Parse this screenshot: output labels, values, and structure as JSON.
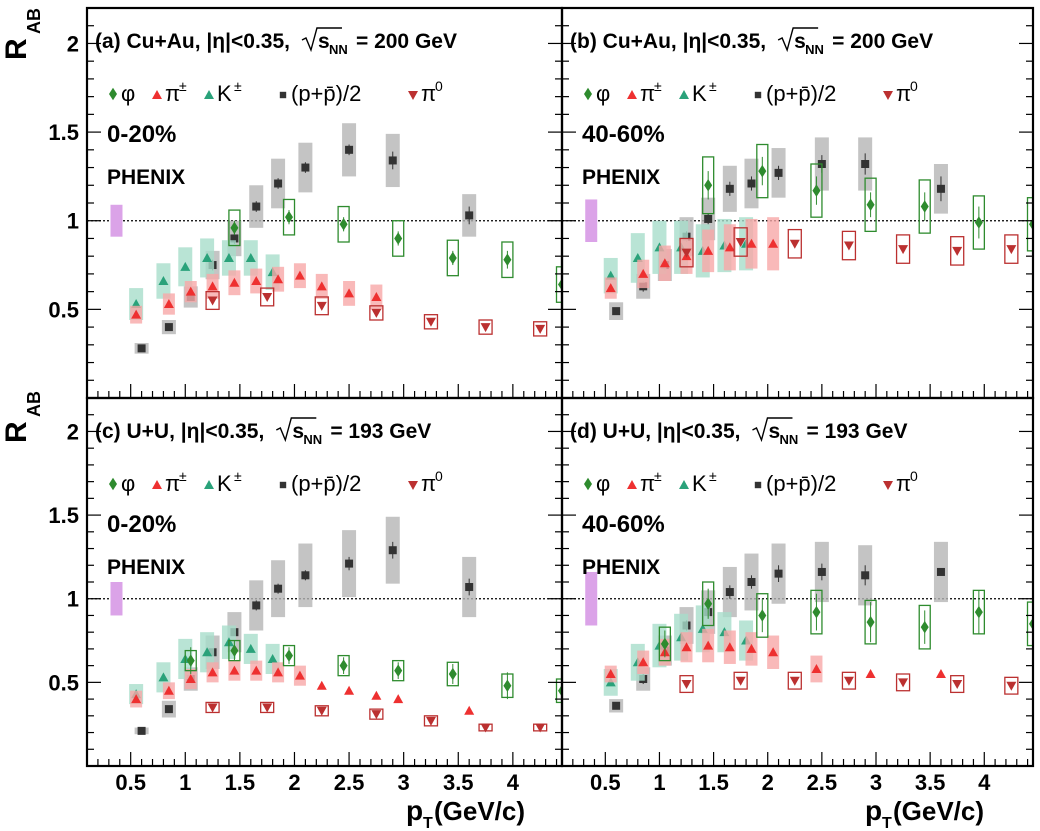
{
  "figure": {
    "y_axis_label_main": "R",
    "y_axis_label_sub": "AB",
    "x_axis_label_main": "p",
    "x_axis_label_sub": "T",
    "x_axis_label_rest": "(GeV/c)",
    "experiment": "PHENIX",
    "legend": {
      "phi": "φ",
      "pipm_base": "π",
      "pipm_sup": "±",
      "kpm_base": "K",
      "kpm_sup": "±",
      "proton": "(p+p̄)/2",
      "pi0_base": "π",
      "pi0_sup": "0"
    },
    "colors": {
      "phi": "#2e8b2e",
      "pipm": "#ee3030",
      "pipm_band": "#f7a8a8",
      "kpm": "#2aa27a",
      "kpm_band": "#a8ddca",
      "proton": "#333333",
      "proton_band": "#b5b5b5",
      "pi0": "#bb3030",
      "norm": "#dba3e8"
    }
  },
  "chart_data": [
    {
      "type": "scatter",
      "panel": "a",
      "system": "Cu+Au",
      "title_prefix": "(a) Cu+Au, |η|<0.35,",
      "energy_label": "s",
      "energy_sub": "NN",
      "energy_value": "= 200 GeV",
      "centrality": "0-20%",
      "xlabel": "p_T (GeV/c)",
      "ylabel": "R_AB",
      "xlim": [
        0.1,
        4.45
      ],
      "ylim": [
        0.0,
        2.2
      ],
      "xticks": [
        "0.5",
        "1",
        "1.5",
        "2",
        "2.5",
        "3",
        "3.5",
        "4"
      ],
      "yticks": [
        "0.5",
        "1",
        "1.5",
        "2"
      ],
      "reference_line": 1.0,
      "norm_uncertainty": [
        0.91,
        1.09
      ],
      "series": [
        {
          "name": "φ",
          "marker": "diamond",
          "style": "open_box",
          "x": [
            1.45,
            1.95,
            2.45,
            2.95,
            3.45,
            3.95,
            4.45
          ],
          "y": [
            0.96,
            1.02,
            0.98,
            0.9,
            0.79,
            0.78,
            0.64
          ],
          "err": [
            0.04,
            0.04,
            0.04,
            0.04,
            0.04,
            0.05,
            0.06
          ],
          "sys": [
            0.1,
            0.1,
            0.1,
            0.1,
            0.1,
            0.1,
            0.1
          ]
        },
        {
          "name": "π±",
          "marker": "triangle",
          "style": "band",
          "x": [
            0.55,
            0.85,
            1.05,
            1.25,
            1.45,
            1.65,
            1.85,
            2.05,
            2.25,
            2.5,
            2.75
          ],
          "y": [
            0.47,
            0.53,
            0.6,
            0.63,
            0.65,
            0.66,
            0.67,
            0.69,
            0.63,
            0.59,
            0.57
          ],
          "sys": [
            0.05,
            0.06,
            0.06,
            0.07,
            0.07,
            0.07,
            0.07,
            0.07,
            0.07,
            0.07,
            0.07
          ]
        },
        {
          "name": "K±",
          "marker": "triangle",
          "style": "band",
          "x": [
            0.55,
            0.8,
            1.0,
            1.2,
            1.4,
            1.6,
            1.8
          ],
          "y": [
            0.53,
            0.66,
            0.74,
            0.79,
            0.79,
            0.79,
            0.71
          ],
          "sys": [
            0.09,
            0.1,
            0.11,
            0.11,
            0.1,
            0.1,
            0.1
          ]
        },
        {
          "name": "(p+p̄)/2",
          "marker": "square",
          "style": "band",
          "x": [
            0.6,
            0.85,
            1.05,
            1.25,
            1.45,
            1.65,
            1.85,
            2.1,
            2.5,
            2.9,
            3.6
          ],
          "y": [
            0.28,
            0.4,
            0.57,
            0.75,
            0.9,
            1.08,
            1.21,
            1.3,
            1.4,
            1.34,
            1.03
          ],
          "err": [
            0.01,
            0.02,
            0.02,
            0.03,
            0.03,
            0.03,
            0.03,
            0.03,
            0.03,
            0.05,
            0.05
          ],
          "sys": [
            0.03,
            0.04,
            0.06,
            0.08,
            0.1,
            0.12,
            0.14,
            0.14,
            0.15,
            0.15,
            0.12
          ]
        },
        {
          "name": "π0",
          "marker": "triangle_down",
          "style": "open_box",
          "x": [
            1.25,
            1.75,
            2.25,
            2.75,
            3.25,
            3.75,
            4.25
          ],
          "y": [
            0.55,
            0.57,
            0.52,
            0.48,
            0.43,
            0.4,
            0.39
          ],
          "sys": [
            0.05,
            0.05,
            0.05,
            0.04,
            0.04,
            0.04,
            0.04
          ]
        }
      ]
    },
    {
      "type": "scatter",
      "panel": "b",
      "system": "Cu+Au",
      "title_prefix": "(b) Cu+Au, |η|<0.35,",
      "energy_label": "s",
      "energy_sub": "NN",
      "energy_value": "= 200 GeV",
      "centrality": "40-60%",
      "xlabel": "p_T (GeV/c)",
      "ylabel": "R_AB",
      "xlim": [
        0.1,
        4.45
      ],
      "ylim": [
        0.0,
        2.2
      ],
      "xticks": [
        "0.5",
        "1",
        "1.5",
        "2",
        "2.5",
        "3",
        "3.5",
        "4"
      ],
      "yticks": [
        "0.5",
        "1",
        "1.5",
        "2"
      ],
      "reference_line": 1.0,
      "norm_uncertainty": [
        0.88,
        1.12
      ],
      "series": [
        {
          "name": "φ",
          "marker": "diamond",
          "style": "open_box",
          "x": [
            1.45,
            1.95,
            2.45,
            2.95,
            3.45,
            3.95,
            4.45
          ],
          "y": [
            1.2,
            1.28,
            1.17,
            1.09,
            1.08,
            0.99,
            0.98
          ],
          "err": [
            0.08,
            0.08,
            0.08,
            0.07,
            0.08,
            0.09,
            0.18
          ],
          "sys": [
            0.16,
            0.15,
            0.15,
            0.15,
            0.15,
            0.15,
            0.15
          ]
        },
        {
          "name": "π±",
          "marker": "triangle",
          "style": "band",
          "x": [
            0.55,
            0.85,
            1.05,
            1.25,
            1.45,
            1.65,
            1.85,
            2.05
          ],
          "y": [
            0.62,
            0.7,
            0.76,
            0.8,
            0.83,
            0.85,
            0.87,
            0.87
          ],
          "sys": [
            0.06,
            0.08,
            0.1,
            0.1,
            0.12,
            0.13,
            0.14,
            0.15
          ]
        },
        {
          "name": "K±",
          "marker": "triangle",
          "style": "band",
          "x": [
            0.55,
            0.8,
            1.0,
            1.2,
            1.4,
            1.6,
            1.8
          ],
          "y": [
            0.69,
            0.79,
            0.85,
            0.85,
            0.83,
            0.86,
            0.87
          ],
          "sys": [
            0.1,
            0.14,
            0.15,
            0.15,
            0.15,
            0.15,
            0.15
          ]
        },
        {
          "name": "(p+p̄)/2",
          "marker": "square",
          "style": "band",
          "x": [
            0.6,
            0.85,
            1.05,
            1.25,
            1.45,
            1.65,
            1.85,
            2.1,
            2.5,
            2.9,
            3.6
          ],
          "y": [
            0.49,
            0.63,
            0.75,
            0.91,
            1.01,
            1.18,
            1.21,
            1.27,
            1.32,
            1.32,
            1.18
          ],
          "err": [
            0.02,
            0.03,
            0.03,
            0.03,
            0.03,
            0.04,
            0.04,
            0.04,
            0.05,
            0.06,
            0.07
          ],
          "sys": [
            0.05,
            0.07,
            0.09,
            0.11,
            0.12,
            0.13,
            0.14,
            0.14,
            0.15,
            0.15,
            0.14
          ]
        },
        {
          "name": "π0",
          "marker": "triangle_down",
          "style": "open_box",
          "x": [
            1.25,
            1.75,
            2.25,
            2.75,
            3.25,
            3.75,
            4.25
          ],
          "y": [
            0.82,
            0.88,
            0.87,
            0.86,
            0.84,
            0.83,
            0.84
          ],
          "sys": [
            0.08,
            0.08,
            0.08,
            0.08,
            0.08,
            0.08,
            0.08
          ]
        }
      ]
    },
    {
      "type": "scatter",
      "panel": "c",
      "system": "U+U",
      "title_prefix": "(c) U+U, |η|<0.35,",
      "energy_label": "s",
      "energy_sub": "NN",
      "energy_value": "= 193 GeV",
      "centrality": "0-20%",
      "xlabel": "p_T (GeV/c)",
      "ylabel": "R_AB",
      "xlim": [
        0.1,
        4.45
      ],
      "ylim": [
        0.0,
        2.2
      ],
      "xticks": [
        "0.5",
        "1",
        "1.5",
        "2",
        "2.5",
        "3",
        "3.5",
        "4"
      ],
      "yticks": [
        "0.5",
        "1",
        "1.5",
        "2"
      ],
      "reference_line": 1.0,
      "norm_uncertainty": [
        0.9,
        1.1
      ],
      "series": [
        {
          "name": "φ",
          "marker": "diamond",
          "style": "open_box",
          "x": [
            1.05,
            1.45,
            1.95,
            2.45,
            2.95,
            3.45,
            3.95,
            4.45
          ],
          "y": [
            0.63,
            0.69,
            0.66,
            0.6,
            0.57,
            0.55,
            0.48,
            0.45
          ],
          "err": [
            0.08,
            0.06,
            0.05,
            0.05,
            0.05,
            0.06,
            0.08,
            0.12
          ],
          "sys": [
            0.06,
            0.06,
            0.06,
            0.06,
            0.06,
            0.07,
            0.07,
            0.07
          ]
        },
        {
          "name": "π±",
          "marker": "triangle",
          "style": "band",
          "x": [
            0.55,
            0.85,
            1.05,
            1.25,
            1.45,
            1.65,
            1.85,
            2.05,
            2.25,
            2.5,
            2.75,
            2.95,
            3.6
          ],
          "y": [
            0.4,
            0.45,
            0.52,
            0.56,
            0.57,
            0.57,
            0.56,
            0.54,
            0.48,
            0.45,
            0.42,
            0.4,
            0.33
          ],
          "sys": [
            0.05,
            0.05,
            0.06,
            0.06,
            0.06,
            0.06,
            0.06,
            0.06,
            0.0,
            0.0,
            0.0,
            0.0,
            0.0
          ]
        },
        {
          "name": "K±",
          "marker": "triangle",
          "style": "band",
          "x": [
            0.55,
            0.8,
            1.0,
            1.2,
            1.4,
            1.6,
            1.8
          ],
          "y": [
            0.43,
            0.53,
            0.64,
            0.68,
            0.74,
            0.7,
            0.64
          ],
          "sys": [
            0.06,
            0.09,
            0.12,
            0.12,
            0.1,
            0.09,
            0.09
          ]
        },
        {
          "name": "(p+p̄)/2",
          "marker": "square",
          "style": "band",
          "x": [
            0.6,
            0.85,
            1.05,
            1.25,
            1.45,
            1.65,
            1.85,
            2.1,
            2.5,
            2.9,
            3.6
          ],
          "y": [
            0.21,
            0.34,
            0.52,
            0.68,
            0.8,
            0.96,
            1.06,
            1.14,
            1.21,
            1.29,
            1.07
          ],
          "err": [
            0.01,
            0.02,
            0.02,
            0.02,
            0.02,
            0.03,
            0.03,
            0.03,
            0.04,
            0.05,
            0.05
          ],
          "sys": [
            0.02,
            0.05,
            0.07,
            0.1,
            0.12,
            0.15,
            0.17,
            0.19,
            0.2,
            0.2,
            0.18
          ]
        },
        {
          "name": "π0",
          "marker": "triangle_down",
          "style": "open_box",
          "x": [
            1.25,
            1.75,
            2.25,
            2.75,
            3.25,
            3.75,
            4.25
          ],
          "y": [
            0.35,
            0.35,
            0.33,
            0.31,
            0.27,
            0.23,
            0.23
          ],
          "sys": [
            0.03,
            0.03,
            0.03,
            0.03,
            0.03,
            0.02,
            0.02
          ]
        }
      ]
    },
    {
      "type": "scatter",
      "panel": "d",
      "system": "U+U",
      "title_prefix": "(d) U+U, |η|<0.35,",
      "energy_label": "s",
      "energy_sub": "NN",
      "energy_value": "= 193 GeV",
      "centrality": "40-60%",
      "xlabel": "p_T (GeV/c)",
      "ylabel": "R_AB",
      "xlim": [
        0.1,
        4.45
      ],
      "ylim": [
        0.0,
        2.2
      ],
      "xticks": [
        "0.5",
        "1",
        "1.5",
        "2",
        "2.5",
        "3",
        "3.5",
        "4"
      ],
      "yticks": [
        "0.5",
        "1",
        "1.5",
        "2"
      ],
      "reference_line": 1.0,
      "norm_uncertainty": [
        0.84,
        1.16
      ],
      "series": [
        {
          "name": "φ",
          "marker": "diamond",
          "style": "open_box",
          "x": [
            1.05,
            1.45,
            1.95,
            2.45,
            2.95,
            3.45,
            3.95,
            4.45
          ],
          "y": [
            0.73,
            0.97,
            0.9,
            0.92,
            0.86,
            0.83,
            0.92,
            0.85
          ],
          "err": [
            0.08,
            0.09,
            0.1,
            0.11,
            0.12,
            0.1,
            0.13,
            0.2
          ],
          "sys": [
            0.1,
            0.13,
            0.13,
            0.13,
            0.13,
            0.13,
            0.13,
            0.13
          ]
        },
        {
          "name": "π±",
          "marker": "triangle",
          "style": "band",
          "x": [
            0.55,
            0.85,
            1.05,
            1.25,
            1.45,
            1.65,
            1.85,
            2.05,
            2.45,
            2.95,
            3.6
          ],
          "y": [
            0.55,
            0.62,
            0.68,
            0.71,
            0.72,
            0.71,
            0.7,
            0.68,
            0.58,
            0.55,
            0.55
          ],
          "sys": [
            0.05,
            0.07,
            0.08,
            0.09,
            0.1,
            0.1,
            0.1,
            0.1,
            0.08,
            0.0,
            0.0
          ]
        },
        {
          "name": "K±",
          "marker": "triangle",
          "style": "band",
          "x": [
            0.55,
            0.8,
            1.0,
            1.2,
            1.4,
            1.6,
            1.8
          ],
          "y": [
            0.5,
            0.62,
            0.72,
            0.77,
            0.82,
            0.8,
            0.75
          ],
          "sys": [
            0.08,
            0.11,
            0.13,
            0.14,
            0.14,
            0.12,
            0.12
          ]
        },
        {
          "name": "(p+p̄)/2",
          "marker": "square",
          "style": "band",
          "x": [
            0.6,
            0.85,
            1.05,
            1.25,
            1.45,
            1.65,
            1.85,
            2.1,
            2.5,
            2.9,
            3.6
          ],
          "y": [
            0.36,
            0.52,
            0.69,
            0.84,
            0.92,
            1.04,
            1.1,
            1.15,
            1.16,
            1.14,
            1.16
          ],
          "err": [
            0.02,
            0.03,
            0.03,
            0.03,
            0.03,
            0.04,
            0.04,
            0.05,
            0.05,
            0.06,
            0.0
          ],
          "sys": [
            0.04,
            0.07,
            0.09,
            0.11,
            0.13,
            0.15,
            0.17,
            0.18,
            0.18,
            0.18,
            0.18
          ]
        },
        {
          "name": "π0",
          "marker": "triangle_down",
          "style": "open_box",
          "x": [
            1.25,
            1.75,
            2.25,
            2.75,
            3.25,
            3.75,
            4.25
          ],
          "y": [
            0.49,
            0.51,
            0.51,
            0.51,
            0.5,
            0.49,
            0.48
          ],
          "sys": [
            0.05,
            0.05,
            0.05,
            0.05,
            0.05,
            0.05,
            0.05
          ]
        }
      ]
    }
  ]
}
